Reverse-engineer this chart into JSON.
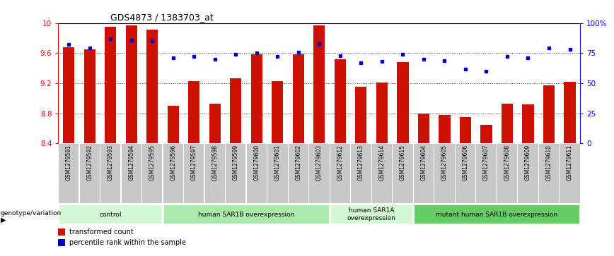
{
  "title": "GDS4873 / 1383703_at",
  "samples": [
    "GSM1279591",
    "GSM1279592",
    "GSM1279593",
    "GSM1279594",
    "GSM1279595",
    "GSM1279596",
    "GSM1279597",
    "GSM1279598",
    "GSM1279599",
    "GSM1279600",
    "GSM1279601",
    "GSM1279602",
    "GSM1279603",
    "GSM1279612",
    "GSM1279613",
    "GSM1279614",
    "GSM1279615",
    "GSM1279604",
    "GSM1279605",
    "GSM1279606",
    "GSM1279607",
    "GSM1279608",
    "GSM1279609",
    "GSM1279610",
    "GSM1279611"
  ],
  "bar_values": [
    9.68,
    9.65,
    9.95,
    9.97,
    9.91,
    8.9,
    9.23,
    8.93,
    9.27,
    9.58,
    9.23,
    9.58,
    9.97,
    9.52,
    9.15,
    9.21,
    9.48,
    8.8,
    8.78,
    8.75,
    8.65,
    8.93,
    8.92,
    9.17,
    9.22
  ],
  "percentile_values": [
    82,
    79,
    87,
    86,
    85,
    71,
    72,
    70,
    74,
    75,
    72,
    76,
    83,
    73,
    67,
    68,
    74,
    70,
    69,
    62,
    60,
    72,
    71,
    79,
    78
  ],
  "groups": [
    {
      "label": "control",
      "start": 0,
      "end": 4,
      "color": "#d4f7d4"
    },
    {
      "label": "human SAR1B overexpression",
      "start": 5,
      "end": 12,
      "color": "#aaeaaa"
    },
    {
      "label": "human SAR1A\noverexpression",
      "start": 13,
      "end": 16,
      "color": "#d4f7d4"
    },
    {
      "label": "mutant human SAR1B overexpression",
      "start": 17,
      "end": 24,
      "color": "#66cc66"
    }
  ],
  "ylim": [
    8.4,
    10.0
  ],
  "yticks": [
    8.4,
    8.8,
    9.2,
    9.6,
    10.0
  ],
  "ytick_labels": [
    "8.4",
    "8.8",
    "9.2",
    "9.6",
    "10"
  ],
  "right_yticks": [
    0,
    25,
    50,
    75,
    100
  ],
  "right_ytick_labels": [
    "0",
    "25",
    "50",
    "75",
    "100%"
  ],
  "bar_color": "#cc1100",
  "dot_color": "#0000cc",
  "background_color": "#ffffff",
  "grid_color": "#444444",
  "xtick_bg": "#c8c8c8"
}
